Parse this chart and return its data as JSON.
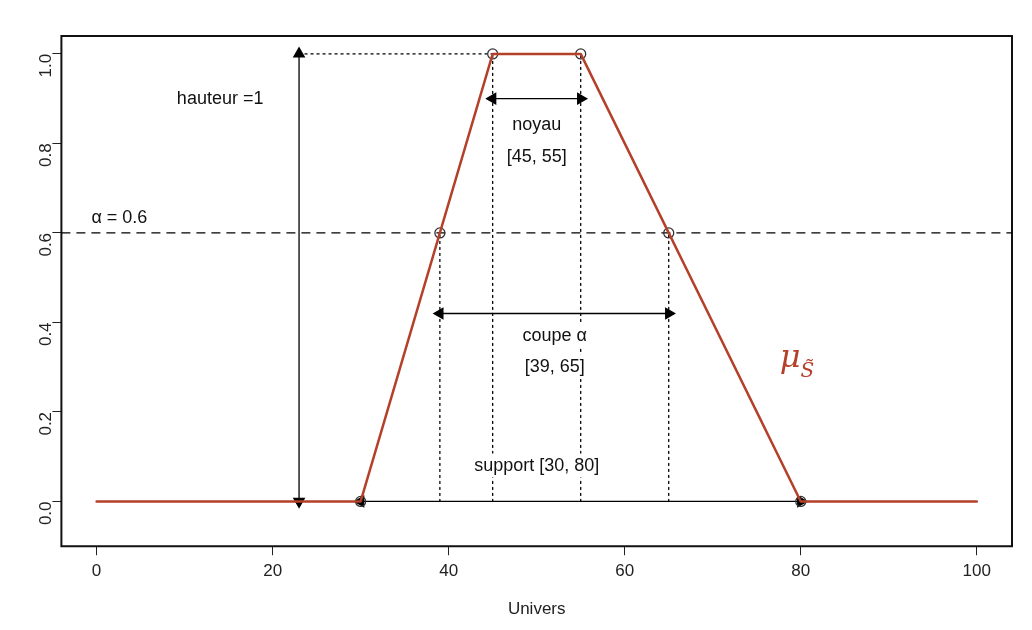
{
  "chart_data": {
    "type": "line",
    "xlabel": "Univers",
    "xlim": [
      -4,
      104
    ],
    "xticks": [
      0,
      20,
      40,
      60,
      80,
      100
    ],
    "ylim": [
      -0.1,
      1.04
    ],
    "yticks": [
      {
        "value": 0,
        "label": "0.0"
      },
      {
        "value": 0.2,
        "label": "0.2"
      },
      {
        "value": 0.4,
        "label": "0.4"
      },
      {
        "value": 0.6,
        "label": "0.6"
      },
      {
        "value": 0.8,
        "label": "0.8"
      },
      {
        "value": 1,
        "label": "1.0"
      }
    ],
    "grid": false,
    "legend": false,
    "series": [
      {
        "name": "μ$_{S̃}$",
        "color": "#b5402a",
        "x": [
          0,
          30,
          39,
          45,
          55,
          65,
          80,
          100
        ],
        "values": [
          0,
          0,
          0.6,
          1,
          1,
          0.6,
          0,
          0
        ],
        "marker": "none"
      },
      {
        "type": "scatter",
        "color": "#333333",
        "x": [
          30,
          39,
          45,
          55,
          65,
          80
        ],
        "values": [
          0,
          0.6,
          1,
          1,
          0.6,
          0
        ],
        "marker": "circle"
      },
      {
        "color": "#000000",
        "x": [
          23,
          45
        ],
        "values": [
          1,
          1
        ],
        "line_style": "dotted"
      },
      {
        "color": "#000000",
        "x": [
          39,
          39
        ],
        "values": [
          0,
          0.6
        ],
        "marker": "none",
        "line_style": "dotted"
      },
      {
        "color": "#000000",
        "x": [
          45,
          45
        ],
        "values": [
          0,
          1
        ],
        "marker": "none",
        "line_style": "dotted"
      },
      {
        "color": "#000000",
        "x": [
          55,
          55
        ],
        "values": [
          0,
          1
        ],
        "marker": "none",
        "line_style": "dotted"
      },
      {
        "color": "#000000",
        "x": [
          65,
          65
        ],
        "values": [
          0,
          0.6
        ],
        "marker": "none",
        "line_style": "dotted"
      },
      {
        "color": "#000000",
        "x": [
          23,
          23
        ],
        "values": [
          0,
          1
        ],
        "marker": "triangle"
      },
      {
        "color": "#000000",
        "x": [
          45,
          55
        ],
        "values": [
          0.9,
          0.9
        ],
        "marker": "triangle"
      },
      {
        "color": "#000000",
        "x": [
          39,
          65
        ],
        "values": [
          0.42,
          0.42
        ],
        "marker": "triangle"
      },
      {
        "color": "#000000",
        "x": [
          30,
          80
        ],
        "values": [
          0,
          0
        ],
        "marker": "triangle"
      }
    ],
    "ref_lines": [
      {
        "axis": "y",
        "value": 0.6,
        "label": "α = 0.6",
        "line_style": "dashed",
        "color": "#000000"
      }
    ],
    "annotations": [
      "hauteur =1",
      "noyau",
      "[45, 55]",
      "coupe α",
      "[39, 65]",
      "support [30, 80]"
    ]
  }
}
